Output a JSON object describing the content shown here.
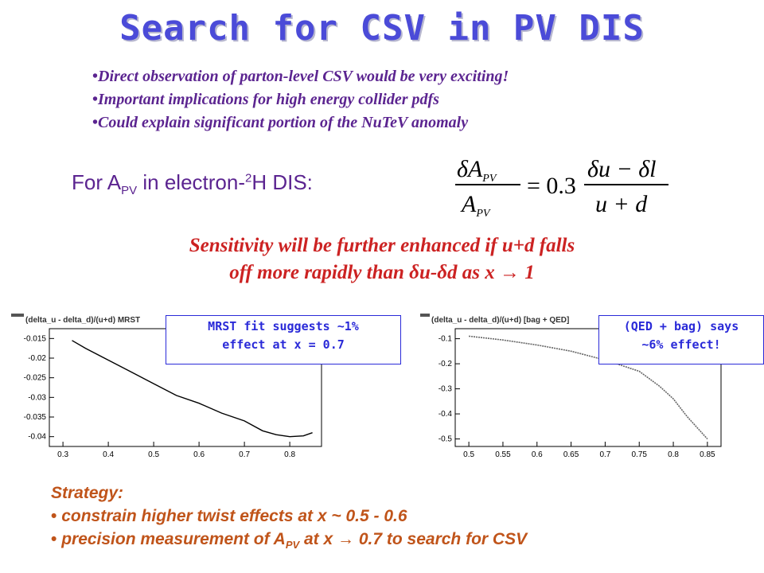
{
  "title": "Search for CSV in PV DIS",
  "bullets": [
    "Direct observation of parton-level CSV would be very exciting!",
    "Important implications for high energy collider pdfs",
    "Could explain significant portion of the NuTeV anomaly"
  ],
  "for_apv": {
    "prefix": "For A",
    "sub": "PV",
    "mid": " in electron-",
    "sup": "2",
    "suffix": "H DIS:"
  },
  "equation": {
    "coefficient": "= 0.3"
  },
  "sensitivity": {
    "line1": "Sensitivity will be further enhanced if u+d falls",
    "line2": "off more rapidly than δu-δd as x → 1"
  },
  "callouts": {
    "left_line1": "MRST fit suggests ~1%",
    "left_line2": "effect at x = 0.7",
    "right_line1": "(QED + bag) says",
    "right_line2": "~6% effect!"
  },
  "strategy": {
    "heading": "Strategy:",
    "item1": "constrain higher twist effects at x ~ 0.5 - 0.6",
    "item2_prefix": "precision measurement of A",
    "item2_sub": "PV",
    "item2_suffix": " at x → 0.7 to search for CSV"
  },
  "chart_data": [
    {
      "type": "line",
      "title": "(delta_u - delta_d)/(u+d)  MRST",
      "x": [
        0.32,
        0.35,
        0.4,
        0.45,
        0.5,
        0.55,
        0.6,
        0.65,
        0.7,
        0.74,
        0.77,
        0.8,
        0.83,
        0.85
      ],
      "y": [
        -0.0155,
        -0.0175,
        -0.0205,
        -0.0235,
        -0.0265,
        -0.0295,
        -0.0315,
        -0.034,
        -0.036,
        -0.0385,
        -0.0395,
        -0.04,
        -0.0398,
        -0.039
      ],
      "xlim": [
        0.27,
        0.87
      ],
      "ylim": [
        -0.0425,
        -0.0125
      ],
      "xticks": [
        "0.3",
        "0.4",
        "0.5",
        "0.6",
        "0.7",
        "0.8"
      ],
      "yticks": [
        "-0.015",
        "-0.02",
        "-0.025",
        "-0.03",
        "-0.035",
        "-0.04"
      ],
      "grid": false
    },
    {
      "type": "line",
      "title": "(delta_u - delta_d)/(u+d)  [bag + QED]",
      "x": [
        0.5,
        0.55,
        0.6,
        0.65,
        0.7,
        0.75,
        0.78,
        0.8,
        0.82,
        0.85
      ],
      "y": [
        -0.09,
        -0.105,
        -0.125,
        -0.15,
        -0.185,
        -0.23,
        -0.29,
        -0.34,
        -0.41,
        -0.5
      ],
      "xlim": [
        0.48,
        0.87
      ],
      "ylim": [
        -0.53,
        -0.06
      ],
      "xticks": [
        "0.5",
        "0.55",
        "0.6",
        "0.65",
        "0.7",
        "0.75",
        "0.8",
        "0.85"
      ],
      "yticks": [
        "-0.1",
        "-0.2",
        "-0.3",
        "-0.4",
        "-0.5"
      ],
      "grid": false
    }
  ]
}
